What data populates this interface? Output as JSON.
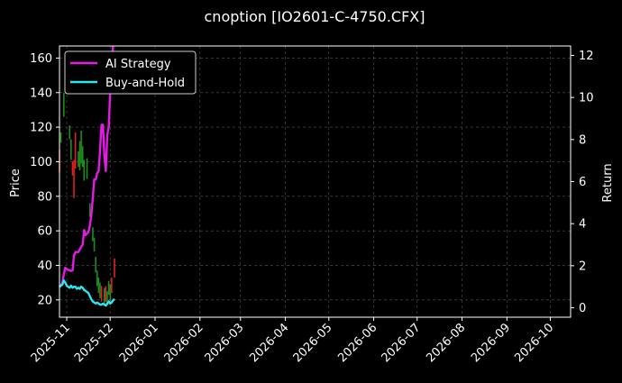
{
  "chart_data": {
    "type": "line",
    "title": "cnoption [IO2601-C-4750.CFX]",
    "ylabel": "Price",
    "y2label": "Return",
    "ylim": [
      10,
      167
    ],
    "y2lim": [
      -0.45,
      12.45
    ],
    "yticks": [
      20,
      40,
      60,
      80,
      100,
      120,
      140,
      160
    ],
    "y2ticks": [
      0,
      2,
      4,
      6,
      8,
      10,
      12
    ],
    "xlim": [
      "2025-10-27",
      "2026-10-15"
    ],
    "xticks": [
      "2025-11-01",
      "2025-12-01",
      "2026-01-01",
      "2026-02-01",
      "2026-03-01",
      "2026-04-01",
      "2026-05-01",
      "2026-06-01",
      "2026-07-01",
      "2026-08-01",
      "2026-09-01",
      "2026-10-01"
    ],
    "xtick_labels": [
      "2025-11",
      "2025-12",
      "2026-01",
      "2026-02",
      "2026-03",
      "2026-04",
      "2026-05",
      "2026-06",
      "2026-07",
      "2026-08",
      "2026-09",
      "2026-10"
    ],
    "grid": true,
    "legend_position": "top-left",
    "series": [
      {
        "name": "AI Strategy",
        "color": "#e619e6",
        "axis": "right",
        "points": [
          [
            "2025-10-27",
            0.98
          ],
          [
            "2025-10-28",
            1.08
          ],
          [
            "2025-10-29",
            1.18
          ],
          [
            "2025-10-30",
            1.6
          ],
          [
            "2025-10-31",
            1.9
          ],
          [
            "2025-11-01",
            1.85
          ],
          [
            "2025-11-02",
            1.8
          ],
          [
            "2025-11-03",
            1.78
          ],
          [
            "2025-11-04",
            1.75
          ],
          [
            "2025-11-05",
            1.78
          ],
          [
            "2025-11-06",
            2.5
          ],
          [
            "2025-11-07",
            2.65
          ],
          [
            "2025-11-09",
            2.65
          ],
          [
            "2025-11-11",
            2.9
          ],
          [
            "2025-11-12",
            3.0
          ],
          [
            "2025-11-13",
            3.7
          ],
          [
            "2025-11-14",
            3.45
          ],
          [
            "2025-11-16",
            3.6
          ],
          [
            "2025-11-17",
            3.9
          ],
          [
            "2025-11-18",
            4.4
          ],
          [
            "2025-11-19",
            5.2
          ],
          [
            "2025-11-20",
            6.1
          ],
          [
            "2025-11-21",
            6.1
          ],
          [
            "2025-11-22",
            6.4
          ],
          [
            "2025-11-23",
            6.5
          ],
          [
            "2025-11-24",
            7.5
          ],
          [
            "2025-11-25",
            8.7
          ],
          [
            "2025-11-26",
            8.7
          ],
          [
            "2025-11-27",
            7.2
          ],
          [
            "2025-11-28",
            6.5
          ],
          [
            "2025-11-29",
            8.2
          ],
          [
            "2025-11-30",
            8.6
          ],
          [
            "2025-12-01",
            10.2
          ],
          [
            "2025-12-02",
            11.5
          ],
          [
            "2025-12-03",
            12.45
          ]
        ]
      },
      {
        "name": "Buy-and-Hold",
        "color": "#2ee6f0",
        "axis": "right",
        "points": [
          [
            "2025-10-27",
            1.0
          ],
          [
            "2025-10-28",
            1.05
          ],
          [
            "2025-10-29",
            1.1
          ],
          [
            "2025-10-30",
            1.3
          ],
          [
            "2025-10-31",
            1.2
          ],
          [
            "2025-11-01",
            1.05
          ],
          [
            "2025-11-02",
            1.0
          ],
          [
            "2025-11-03",
            0.95
          ],
          [
            "2025-11-04",
            1.05
          ],
          [
            "2025-11-05",
            0.95
          ],
          [
            "2025-11-06",
            1.0
          ],
          [
            "2025-11-07",
            1.0
          ],
          [
            "2025-11-08",
            0.9
          ],
          [
            "2025-11-09",
            0.95
          ],
          [
            "2025-11-10",
            0.9
          ],
          [
            "2025-11-11",
            1.0
          ],
          [
            "2025-11-12",
            0.95
          ],
          [
            "2025-11-13",
            0.85
          ],
          [
            "2025-11-14",
            0.8
          ],
          [
            "2025-11-16",
            0.7
          ],
          [
            "2025-11-17",
            0.55
          ],
          [
            "2025-11-18",
            0.4
          ],
          [
            "2025-11-19",
            0.3
          ],
          [
            "2025-11-20",
            0.25
          ],
          [
            "2025-11-21",
            0.2
          ],
          [
            "2025-11-22",
            0.25
          ],
          [
            "2025-11-23",
            0.2
          ],
          [
            "2025-11-24",
            0.15
          ],
          [
            "2025-11-25",
            0.15
          ],
          [
            "2025-11-26",
            0.2
          ],
          [
            "2025-11-27",
            0.15
          ],
          [
            "2025-11-28",
            0.1
          ],
          [
            "2025-11-29",
            0.2
          ],
          [
            "2025-11-30",
            0.3
          ],
          [
            "2025-12-01",
            0.2
          ],
          [
            "2025-12-02",
            0.25
          ],
          [
            "2025-12-03",
            0.35
          ],
          [
            "2025-12-04",
            0.42
          ]
        ]
      }
    ],
    "candles": {
      "up_color": "#1f8c1f",
      "down_color": "#e01f1f",
      "data": [
        [
          "2025-10-27",
          98,
          107,
          94,
          "down"
        ],
        [
          "2025-10-28",
          113,
          117,
          111,
          "up"
        ],
        [
          "2025-10-30",
          129,
          140,
          126,
          "up"
        ],
        [
          "2025-11-03",
          115,
          121,
          113,
          "up"
        ],
        [
          "2025-11-04",
          108,
          113,
          101,
          "up"
        ],
        [
          "2025-11-05",
          97,
          100,
          92,
          "down"
        ],
        [
          "2025-11-06",
          85,
          101,
          79,
          "down"
        ],
        [
          "2025-11-07",
          105,
          117,
          96,
          "down"
        ],
        [
          "2025-11-09",
          101,
          106,
          97,
          "up"
        ],
        [
          "2025-11-10",
          106,
          112,
          95,
          "up"
        ],
        [
          "2025-11-11",
          110,
          118,
          99,
          "up"
        ],
        [
          "2025-11-12",
          103,
          109,
          97,
          "up"
        ],
        [
          "2025-11-13",
          93,
          101,
          89,
          "up"
        ],
        [
          "2025-11-15",
          97,
          102,
          90,
          "up"
        ],
        [
          "2025-11-17",
          72,
          76,
          68,
          "up"
        ],
        [
          "2025-11-19",
          58,
          62,
          54,
          "up"
        ],
        [
          "2025-11-20",
          52,
          56,
          48,
          "up"
        ],
        [
          "2025-11-21",
          40,
          45,
          36,
          "up"
        ],
        [
          "2025-11-22",
          33,
          37,
          28,
          "up"
        ],
        [
          "2025-11-23",
          29,
          33,
          24,
          "up"
        ],
        [
          "2025-11-24",
          26,
          30,
          21,
          "up"
        ],
        [
          "2025-11-25",
          24,
          28,
          19,
          "down"
        ],
        [
          "2025-11-27",
          23,
          27,
          18,
          "up"
        ],
        [
          "2025-11-28",
          23,
          28,
          19,
          "down"
        ],
        [
          "2025-11-29",
          21,
          25,
          17,
          "up"
        ],
        [
          "2025-11-30",
          27,
          31,
          23,
          "up"
        ],
        [
          "2025-12-01",
          23,
          29,
          19,
          "up"
        ],
        [
          "2025-12-02",
          28,
          33,
          24,
          "down"
        ],
        [
          "2025-12-04",
          38,
          44,
          33,
          "down"
        ]
      ]
    }
  }
}
